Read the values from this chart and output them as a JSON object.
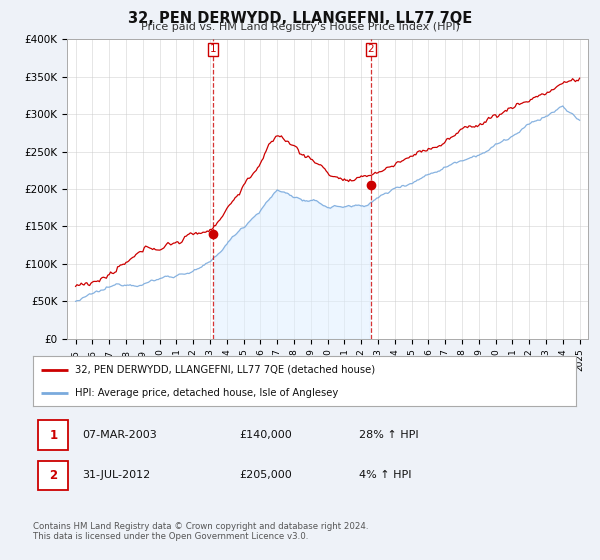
{
  "title": "32, PEN DERWYDD, LLANGEFNI, LL77 7QE",
  "subtitle": "Price paid vs. HM Land Registry's House Price Index (HPI)",
  "ylim": [
    0,
    400000
  ],
  "yticks": [
    0,
    50000,
    100000,
    150000,
    200000,
    250000,
    300000,
    350000,
    400000
  ],
  "ytick_labels": [
    "£0",
    "£50K",
    "£100K",
    "£150K",
    "£200K",
    "£250K",
    "£300K",
    "£350K",
    "£400K"
  ],
  "xstart_year": 1995,
  "xend_year": 2025,
  "red_line_color": "#cc0000",
  "blue_line_color": "#7aaadd",
  "blue_fill_color": "#ddeeff",
  "dashed_red_color": "#cc0000",
  "marker1_year": 2003.17,
  "marker1_value": 140000,
  "marker2_year": 2012.58,
  "marker2_value": 205000,
  "legend_label_red": "32, PEN DERWYDD, LLANGEFNI, LL77 7QE (detached house)",
  "legend_label_blue": "HPI: Average price, detached house, Isle of Anglesey",
  "table_row1": [
    "1",
    "07-MAR-2003",
    "£140,000",
    "28% ↑ HPI"
  ],
  "table_row2": [
    "2",
    "31-JUL-2012",
    "£205,000",
    "4% ↑ HPI"
  ],
  "footer": "Contains HM Land Registry data © Crown copyright and database right 2024.\nThis data is licensed under the Open Government Licence v3.0.",
  "background_color": "#eef2f8",
  "plot_bg_color": "#ffffff",
  "grid_color": "#cccccc"
}
